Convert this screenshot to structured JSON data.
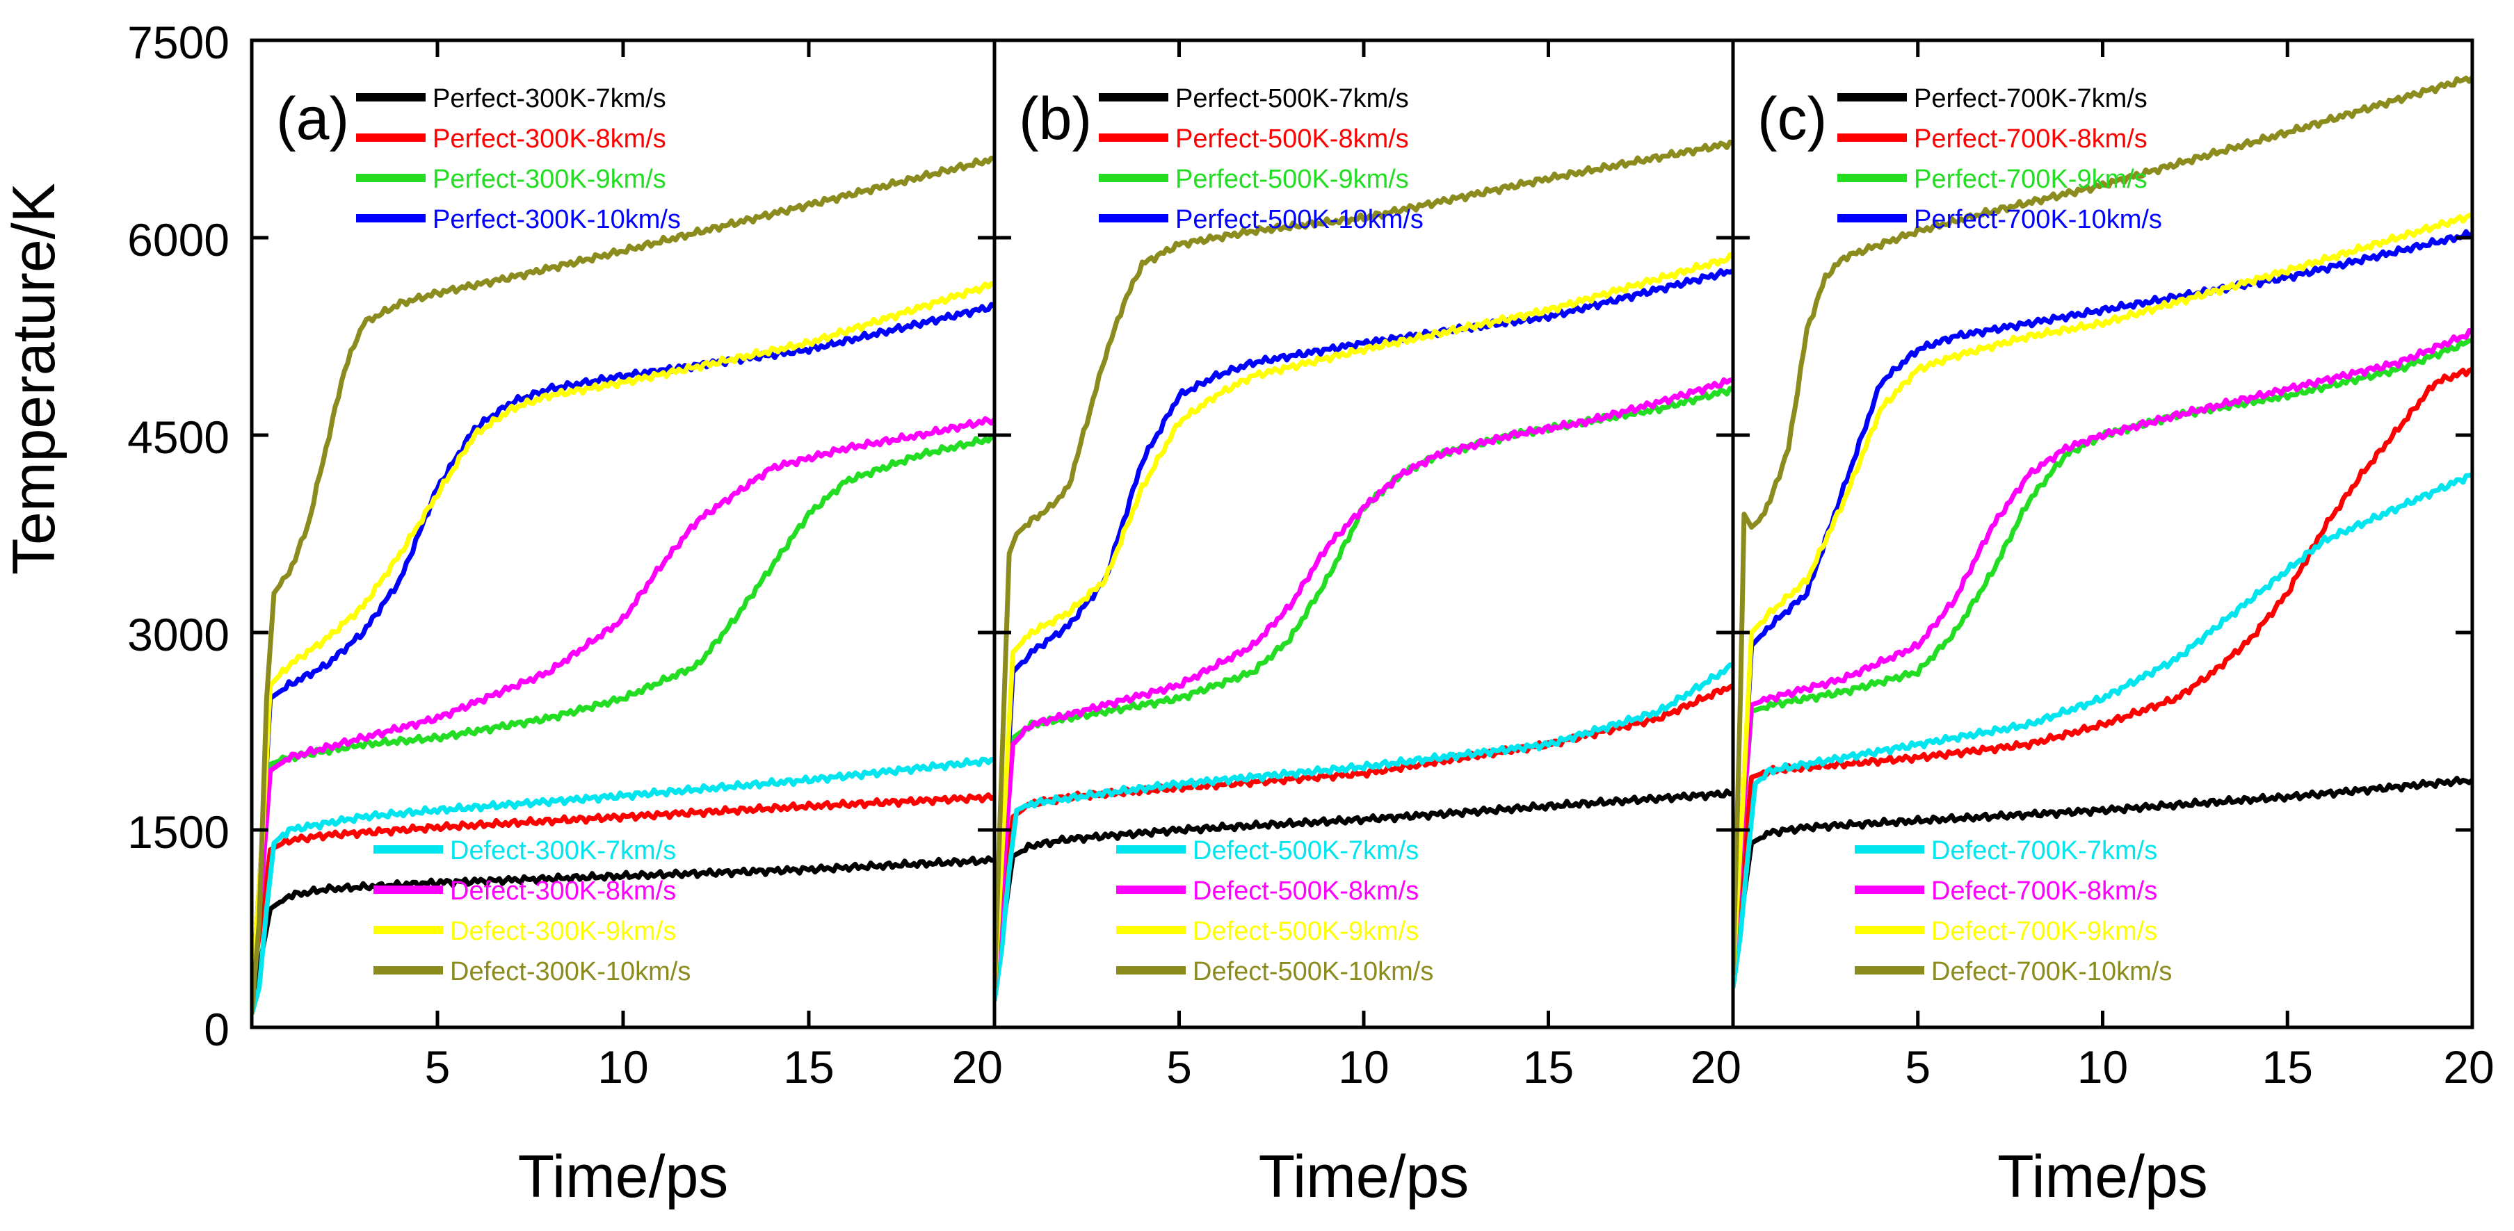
{
  "chart_data": {
    "type": "line",
    "layout": "three panels sharing y-axis",
    "ylabel": "Temperature/K",
    "xlabel": "Time/ps",
    "ylim": [
      0,
      7500
    ],
    "yticks": [
      "0",
      "1500",
      "3000",
      "4500",
      "6000",
      "7500"
    ],
    "xlim": [
      0,
      20
    ],
    "panels": [
      {
        "label": "(a)",
        "xticks": [
          "5",
          "10",
          "15",
          "20"
        ],
        "series": [
          {
            "name": "Perfect-300K-7km/s",
            "color": "#000000",
            "x": [
              0,
              0.3,
              0.5,
              1,
              2,
              5,
              10,
              15,
              20
            ],
            "y": [
              200,
              600,
              900,
              1000,
              1050,
              1100,
              1150,
              1200,
              1270
            ]
          },
          {
            "name": "Perfect-300K-8km/s",
            "color": "#ff0000",
            "x": [
              0,
              0.3,
              0.5,
              1,
              2,
              5,
              10,
              15,
              20
            ],
            "y": [
              300,
              900,
              1350,
              1420,
              1460,
              1520,
              1600,
              1680,
              1750
            ]
          },
          {
            "name": "Perfect-300K-9km/s",
            "color": "#22dd22",
            "x": [
              0,
              0.3,
              0.5,
              1,
              3,
              5,
              8,
              10,
              12,
              13,
              14,
              15,
              16,
              18,
              20
            ],
            "y": [
              200,
              1200,
              2000,
              2050,
              2150,
              2200,
              2350,
              2500,
              2750,
              3100,
              3500,
              3900,
              4150,
              4350,
              4480
            ]
          },
          {
            "name": "Perfect-300K-10km/s",
            "color": "#0000ff",
            "x": [
              0,
              0.3,
              0.5,
              1,
              2,
              3,
              4,
              5,
              6,
              7,
              8,
              10,
              15,
              20
            ],
            "y": [
              200,
              1500,
              2500,
              2600,
              2750,
              3000,
              3400,
              4100,
              4550,
              4750,
              4850,
              4950,
              5150,
              5480
            ]
          },
          {
            "name": "Defect-300K-7km/s",
            "color": "#00e5ee",
            "x": [
              0,
              0.2,
              0.4,
              0.6,
              1,
              3,
              5,
              10,
              15,
              20
            ],
            "y": [
              100,
              300,
              900,
              1400,
              1500,
              1600,
              1650,
              1760,
              1880,
              2030
            ]
          },
          {
            "name": "Defect-300K-8km/s",
            "color": "#ff00ff",
            "x": [
              0,
              0.3,
              0.5,
              1,
              3,
              5,
              8,
              10,
              11,
              12,
              13,
              14,
              16,
              18,
              20
            ],
            "y": [
              200,
              1200,
              1950,
              2050,
              2200,
              2350,
              2700,
              3100,
              3500,
              3850,
              4050,
              4250,
              4400,
              4500,
              4620
            ]
          },
          {
            "name": "Defect-300K-9km/s",
            "color": "#ffff00",
            "x": [
              0,
              0.3,
              0.5,
              1,
              2,
              3,
              4,
              5,
              6,
              7,
              8,
              10,
              15,
              20
            ],
            "y": [
              200,
              1500,
              2600,
              2750,
              2950,
              3200,
              3600,
              4050,
              4500,
              4700,
              4800,
              4900,
              5200,
              5650
            ]
          },
          {
            "name": "Defect-300K-10km/s",
            "color": "#8b8b1e",
            "x": [
              0,
              0.2,
              0.4,
              0.6,
              1,
              1.5,
              2,
              2.5,
              3,
              4,
              5,
              7,
              10,
              15,
              20
            ],
            "y": [
              100,
              800,
              2500,
              3300,
              3450,
              3800,
              4400,
              5000,
              5350,
              5500,
              5580,
              5700,
              5900,
              6250,
              6600
            ]
          }
        ]
      },
      {
        "label": "(b)",
        "xticks": [
          "5",
          "10",
          "15",
          "20"
        ],
        "series": [
          {
            "name": "Perfect-500K-7km/s",
            "color": "#000000",
            "x": [
              0,
              0.3,
              0.5,
              1,
              2,
              5,
              10,
              15,
              20
            ],
            "y": [
              300,
              900,
              1300,
              1380,
              1430,
              1500,
              1580,
              1680,
              1780
            ]
          },
          {
            "name": "Perfect-500K-8km/s",
            "color": "#ff0000",
            "x": [
              0,
              0.3,
              0.5,
              1,
              2,
              5,
              10,
              15,
              18,
              20
            ],
            "y": [
              300,
              1100,
              1600,
              1700,
              1750,
              1820,
              1930,
              2150,
              2350,
              2600
            ]
          },
          {
            "name": "Perfect-500K-9km/s",
            "color": "#22dd22",
            "x": [
              0,
              0.3,
              0.5,
              1,
              3,
              5,
              7,
              8,
              9,
              10,
              11,
              12,
              14,
              16,
              18,
              20
            ],
            "y": [
              300,
              1400,
              2200,
              2300,
              2400,
              2500,
              2700,
              2950,
              3400,
              3950,
              4200,
              4350,
              4500,
              4600,
              4700,
              4850
            ]
          },
          {
            "name": "Perfect-500K-10km/s",
            "color": "#0000ff",
            "x": [
              0,
              0.3,
              0.5,
              1,
              2,
              3,
              4,
              5,
              6,
              7,
              10,
              15,
              20
            ],
            "y": [
              300,
              1700,
              2700,
              2850,
              3050,
              3400,
              4300,
              4800,
              4950,
              5050,
              5200,
              5400,
              5750
            ]
          },
          {
            "name": "Defect-500K-7km/s",
            "color": "#00e5ee",
            "x": [
              0,
              0.2,
              0.4,
              0.6,
              1,
              3,
              5,
              10,
              15,
              18,
              20
            ],
            "y": [
              200,
              600,
              1200,
              1650,
              1700,
              1780,
              1850,
              1980,
              2150,
              2400,
              2750
            ]
          },
          {
            "name": "Defect-500K-8km/s",
            "color": "#ff00ff",
            "x": [
              0,
              0.3,
              0.5,
              1,
              3,
              5,
              7,
              8,
              9,
              10,
              11,
              12,
              14,
              16,
              18,
              20
            ],
            "y": [
              300,
              1400,
              2150,
              2300,
              2450,
              2600,
              2900,
              3200,
              3650,
              3950,
              4200,
              4350,
              4500,
              4600,
              4750,
              4920
            ]
          },
          {
            "name": "Defect-500K-9km/s",
            "color": "#ffff00",
            "x": [
              0,
              0.3,
              0.5,
              1,
              2,
              3,
              4,
              5,
              6,
              7,
              10,
              15,
              20
            ],
            "y": [
              300,
              1800,
              2850,
              3000,
              3150,
              3400,
              4100,
              4600,
              4800,
              4950,
              5150,
              5450,
              5850
            ]
          },
          {
            "name": "Defect-500K-10km/s",
            "color": "#8b8b1e",
            "x": [
              0,
              0.2,
              0.4,
              0.6,
              1,
              1.5,
              2,
              2.5,
              3,
              3.5,
              4,
              5,
              7,
              10,
              15,
              20
            ],
            "y": [
              300,
              2000,
              3600,
              3750,
              3850,
              3950,
              4100,
              4600,
              5100,
              5500,
              5800,
              5950,
              6050,
              6150,
              6450,
              6720
            ]
          }
        ]
      },
      {
        "label": "(c)",
        "xticks": [
          "5",
          "10",
          "15",
          "20"
        ],
        "series": [
          {
            "name": "Perfect-700K-7km/s",
            "color": "#000000",
            "x": [
              0,
              0.3,
              0.5,
              1,
              2,
              5,
              10,
              15,
              20
            ],
            "y": [
              400,
              1000,
              1400,
              1480,
              1520,
              1570,
              1650,
              1750,
              1880
            ]
          },
          {
            "name": "Perfect-700K-8km/s",
            "color": "#ff0000",
            "x": [
              0,
              0.3,
              0.5,
              1,
              3,
              5,
              8,
              10,
              12,
              13,
              14,
              15,
              16,
              17,
              18,
              19,
              20
            ],
            "y": [
              400,
              1300,
              1900,
              1950,
              2000,
              2050,
              2150,
              2300,
              2500,
              2700,
              2950,
              3300,
              3800,
              4200,
              4550,
              4900,
              5000
            ]
          },
          {
            "name": "Perfect-700K-9km/s",
            "color": "#22dd22",
            "x": [
              0,
              0.3,
              0.5,
              1,
              3,
              5,
              6,
              7,
              8,
              9,
              10,
              12,
              15,
              18,
              20
            ],
            "y": [
              400,
              1700,
              2400,
              2450,
              2550,
              2700,
              3000,
              3450,
              4000,
              4350,
              4500,
              4650,
              4800,
              5000,
              5220
            ]
          },
          {
            "name": "Perfect-700K-10km/s",
            "color": "#0000ff",
            "x": [
              0,
              0.3,
              0.5,
              1,
              2,
              3,
              4,
              5,
              6,
              8,
              10,
              15,
              20
            ],
            "y": [
              400,
              1900,
              2900,
              3050,
              3300,
              4100,
              4900,
              5150,
              5250,
              5350,
              5450,
              5700,
              6030
            ]
          },
          {
            "name": "Defect-700K-7km/s",
            "color": "#00e5ee",
            "x": [
              0,
              0.2,
              0.4,
              0.6,
              1,
              3,
              5,
              8,
              10,
              12,
              14,
              16,
              18,
              20
            ],
            "y": [
              300,
              700,
              1300,
              1850,
              1950,
              2050,
              2150,
              2300,
              2500,
              2800,
              3250,
              3700,
              3950,
              4200
            ]
          },
          {
            "name": "Defect-700K-8km/s",
            "color": "#ff00ff",
            "x": [
              0,
              0.3,
              0.5,
              1,
              3,
              5,
              6,
              7,
              8,
              9,
              10,
              12,
              15,
              18,
              20
            ],
            "y": [
              400,
              1700,
              2450,
              2500,
              2650,
              2900,
              3250,
              3800,
              4200,
              4400,
              4500,
              4650,
              4850,
              5050,
              5280
            ]
          },
          {
            "name": "Defect-700K-9km/s",
            "color": "#ffff00",
            "x": [
              0,
              0.3,
              0.5,
              1,
              2,
              3,
              4,
              5,
              6,
              8,
              10,
              15,
              20
            ],
            "y": [
              400,
              1900,
              3000,
              3150,
              3400,
              4000,
              4700,
              5000,
              5100,
              5250,
              5350,
              5750,
              6170
            ]
          },
          {
            "name": "Defect-700K-10km/s",
            "color": "#8b8b1e",
            "x": [
              0,
              0.2,
              0.3,
              0.5,
              0.7,
              1,
              1.5,
              2,
              2.5,
              3,
              4,
              5,
              7,
              10,
              15,
              20
            ],
            "y": [
              400,
              2500,
              3900,
              3800,
              3850,
              4000,
              4400,
              5300,
              5700,
              5850,
              5950,
              6050,
              6200,
              6400,
              6800,
              7220
            ]
          }
        ]
      }
    ]
  }
}
